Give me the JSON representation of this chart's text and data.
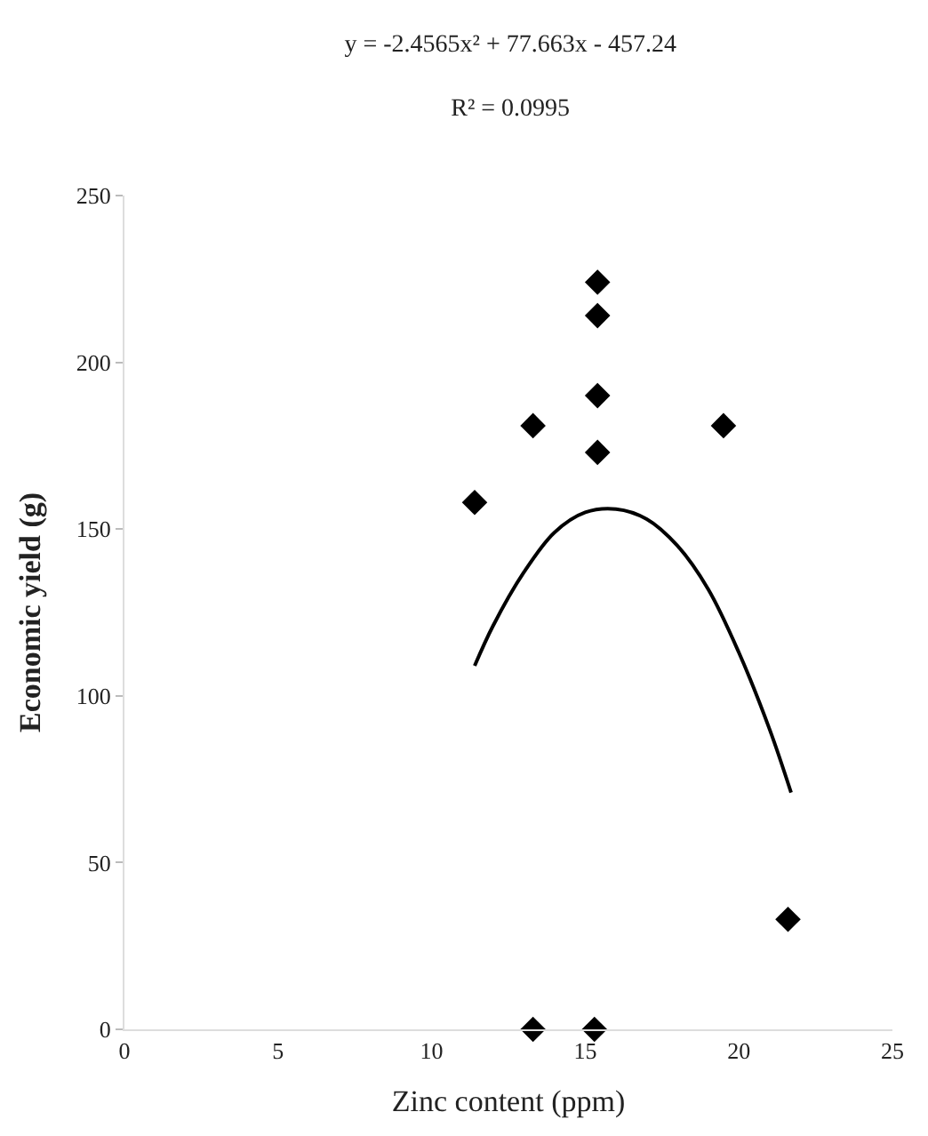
{
  "chart_data": {
    "type": "scatter",
    "title": "y = -2.4565x² + 77.663x - 457.24",
    "subtitle": "R² = 0.0995",
    "xlabel": "Zinc content (ppm)",
    "ylabel": "Economic yield (g)",
    "xlim": [
      0,
      25
    ],
    "xticks": [
      0,
      5,
      10,
      15,
      20,
      25
    ],
    "ylim": [
      0,
      250
    ],
    "yticks": [
      0,
      50,
      100,
      150,
      200,
      250
    ],
    "series": [
      {
        "color": "#000000",
        "marker": "diamond",
        "x": [
          11.4,
          13.3,
          15.4,
          15.4,
          15.4,
          15.4,
          19.5,
          21.6,
          13.3,
          15.3
        ],
        "values": [
          158,
          181,
          224,
          214,
          190,
          173,
          181,
          33,
          0,
          0
        ]
      },
      {
        "type": "line",
        "color": "#000000",
        "marker": "none",
        "line_style": "solid",
        "x": [
          11.4,
          12,
          13,
          14,
          15,
          16,
          17,
          18,
          19,
          20,
          21,
          21.7
        ],
        "values": [
          109,
          121,
          137,
          149,
          155,
          156,
          153,
          145,
          132,
          113,
          90,
          71
        ]
      }
    ]
  }
}
